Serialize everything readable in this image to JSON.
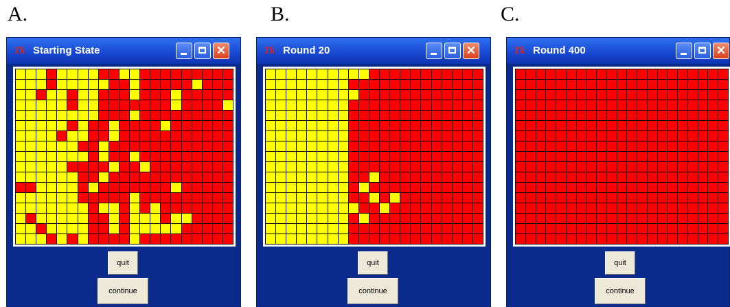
{
  "panels": [
    {
      "letter": "A.",
      "title": "Starting State",
      "logo": "Tk",
      "quit_label": "quit",
      "continue_label": "continue",
      "grid": [
        "YYYRYYYYRRYYRRRRRRRRR",
        "YYYRYYYYYRRYRRRRRYRRR",
        "YYRYYRYYRRRYRRRYRRRRR",
        "YYYYYRYYRRRRRRRYRRRRY",
        "YYYYYYYYRRRYRRRRRRRRR",
        "YYYYYRYRRYRRRRYRRRRRR",
        "YYYYRYYRRYRRRRRRRRRRR",
        "YYYYYYRRYRRRRRRRRRRRR",
        "YYYYYYYRYRRYRRRRRRRRR",
        "YYYYYRRRRYRRYRRRRRRRR",
        "YYYYYYRRYRRRRRRRRRRRR",
        "RRYYYYRYRRRRRRRYRRRRR",
        "YYYYYYRRRRRYRRRRRRRRR",
        "YYYYYYYRYYRYRYRRRRRRR",
        "YRYYYYYRRYRYYYRYYRRRR",
        "YYRYYYYRRYRYYYYYRRRRR",
        "YYYRYRYRRRRYRRRRRRRRR"
      ]
    },
    {
      "letter": "B.",
      "title": "Round 20",
      "logo": "Tk",
      "quit_label": "quit",
      "continue_label": "continue",
      "grid": [
        "YYYYYYYYYYRRRRRRRRRRR",
        "YYYYYYYYRRRRRRRRRRRRR",
        "YYYYYYYYYRRRRRRRRRRRR",
        "YYYYYYYYRRRRRRRRRRRRR",
        "YYYYYYYYRRRRRRRRRRRRR",
        "YYYYYYYYRRRRRRRRRRRRR",
        "YYYYYYYYRRRRRRRRRRRRR",
        "YYYYYYYYRRRRRRRRRRRRR",
        "YYYYYYYYRRRRRRRRRRRRR",
        "YYYYYYYYRRRRRRRRRRRRR",
        "YYYYYYYYRRYRRRRRRRRRR",
        "YYYYYYYYRYRRRRRRRRRRR",
        "YYYYYYYYRRYRYRRRRRRRR",
        "YYYYYYYYYRRYRRRRRRRRR",
        "YYYYYYYYRYRRRRRRRRRRR",
        "YYYYYYYYRRRRRRRRRRRRR",
        "YYYYYYYYRRRRRRRRRRRRR"
      ]
    },
    {
      "letter": "C.",
      "title": "Round 400",
      "logo": "Tk",
      "quit_label": "quit",
      "continue_label": "continue",
      "grid": [
        "RRRRRRRRRRRRRRRRRRRRR",
        "RRRRRRRRRRRRRRRRRRRRR",
        "RRRRRRRRRRRRRRRRRRRRR",
        "RRRRRRRRRRRRRRRRRRRRR",
        "RRRRRRRRRRRRRRRRRRRRR",
        "RRRRRRRRRRRRRRRRRRRRR",
        "RRRRRRRRRRRRRRRRRRRRR",
        "RRRRRRRRRRRRRRRRRRRRR",
        "RRRRRRRRRRRRRRRRRRRRR",
        "RRRRRRRRRRRRRRRRRRRRR",
        "RRRRRRRRRRRRRRRRRRRRR",
        "RRRRRRRRRRRRRRRRRRRRR",
        "RRRRRRRRRRRRRRRRRRRRR",
        "RRRRRRRRRRRRRRRRRRRRR",
        "RRRRRRRRRRRRRRRRRRRRR",
        "RRRRRRRRRRRRRRRRRRRRR",
        "RRRRRRRRRRRRRRRRRRRRR"
      ]
    }
  ],
  "colors": {
    "cell_yellow": "#ffff00",
    "cell_red": "#ff0000",
    "window_body": "#0a2a8c",
    "titlebar": "#1848d0"
  }
}
